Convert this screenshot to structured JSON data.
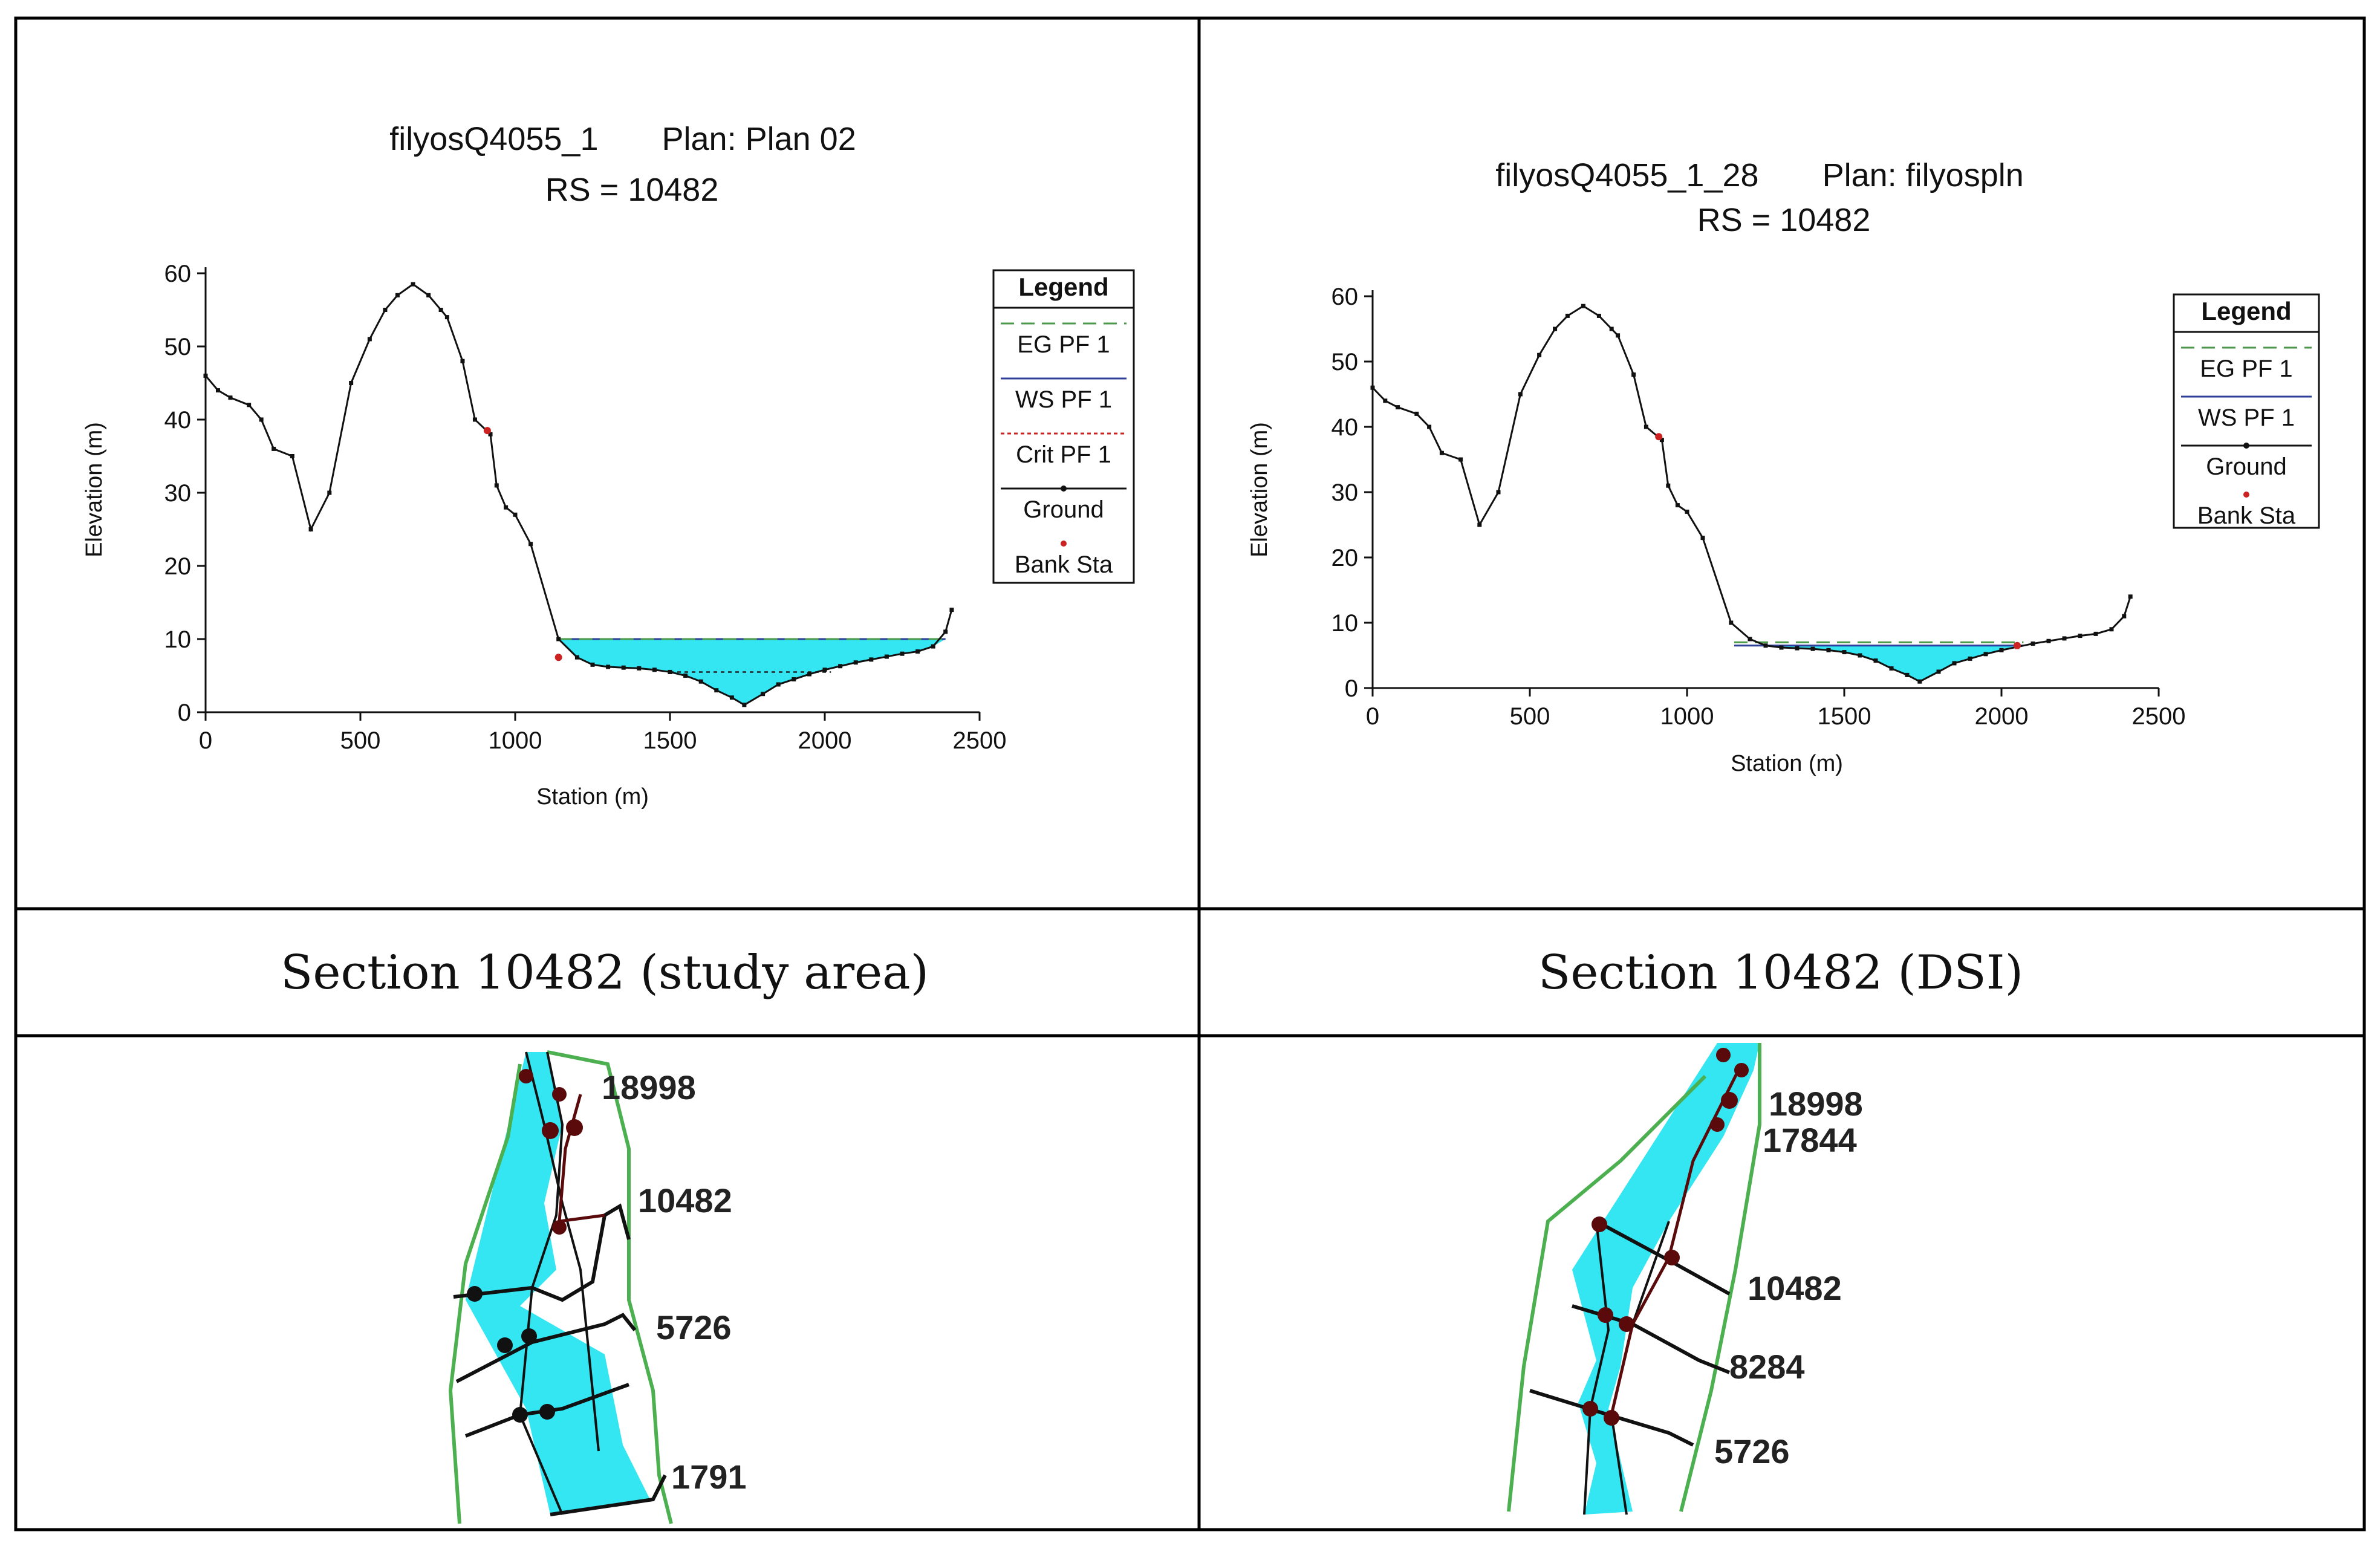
{
  "colors": {
    "water": "#33e6f2",
    "ground": "#111111",
    "eg_line": "#4a9a4a",
    "ws_line": "#2f3f9a",
    "crit_line": "#cc2222",
    "bank_sta": "#cc2222",
    "map_bank": "#4caf50",
    "map_node": "#5a0a0a"
  },
  "chart_data": [
    {
      "type": "line",
      "panel": "left",
      "title_line1": "filyosQ4055_1       Plan: Plan 02",
      "title_line2": "RS = 10482",
      "xlabel": "Station (m)",
      "ylabel": "Elevation (m)",
      "xlim": [
        0,
        2500
      ],
      "ylim": [
        0,
        60
      ],
      "xticks": [
        0,
        500,
        1000,
        1500,
        2000,
        2500
      ],
      "yticks": [
        0,
        10,
        20,
        30,
        40,
        50,
        60
      ],
      "legend_title": "Legend",
      "legend": [
        "EG PF 1",
        "WS PF 1",
        "Crit PF 1",
        "Ground",
        "Bank Sta"
      ],
      "ground": {
        "x": [
          0,
          40,
          80,
          140,
          180,
          220,
          280,
          340,
          400,
          470,
          530,
          580,
          620,
          670,
          720,
          760,
          780,
          830,
          870,
          920,
          940,
          970,
          1000,
          1050,
          1140,
          1200,
          1250,
          1300,
          1350,
          1400,
          1450,
          1500,
          1550,
          1600,
          1650,
          1700,
          1740,
          1800,
          1850,
          1900,
          1950,
          2000,
          2050,
          2100,
          2150,
          2200,
          2250,
          2300,
          2350,
          2390,
          2410
        ],
        "y": [
          46,
          44,
          43,
          42,
          40,
          36,
          35,
          25,
          30,
          45,
          51,
          55,
          57,
          58.5,
          57,
          55,
          54,
          48,
          40,
          38,
          31,
          28,
          27,
          23,
          10,
          7.5,
          6.5,
          6.2,
          6.1,
          6,
          5.8,
          5.5,
          5,
          4.2,
          3,
          2,
          1,
          2.5,
          3.8,
          4.5,
          5.2,
          5.8,
          6.3,
          6.8,
          7.2,
          7.6,
          8,
          8.3,
          9,
          11,
          14
        ]
      },
      "water_surface": {
        "elevation": 10,
        "x_from": 1140,
        "x_to": 2390
      },
      "crit_depth": {
        "elevation": 5.5,
        "x_from": 1500,
        "x_to": 2020
      },
      "bank_sta": [
        {
          "x": 910,
          "y": 38.5
        },
        {
          "x": 1140,
          "y": 7.5
        }
      ]
    },
    {
      "type": "line",
      "panel": "right",
      "title_line1": "filyosQ4055_1_28       Plan: filyospln",
      "title_line2": "RS = 10482",
      "xlabel": "Station (m)",
      "ylabel": "Elevation (m)",
      "xlim": [
        0,
        2500
      ],
      "ylim": [
        0,
        60
      ],
      "xticks": [
        0,
        500,
        1000,
        1500,
        2000,
        2500
      ],
      "yticks": [
        0,
        10,
        20,
        30,
        40,
        50,
        60
      ],
      "legend_title": "Legend",
      "legend": [
        "EG PF 1",
        "WS PF 1",
        "Ground",
        "Bank Sta"
      ],
      "ground": {
        "x": [
          0,
          40,
          80,
          140,
          180,
          220,
          280,
          340,
          400,
          470,
          530,
          580,
          620,
          670,
          720,
          760,
          780,
          830,
          870,
          920,
          940,
          970,
          1000,
          1050,
          1140,
          1200,
          1250,
          1300,
          1350,
          1400,
          1450,
          1500,
          1550,
          1600,
          1650,
          1700,
          1740,
          1800,
          1850,
          1900,
          1950,
          2000,
          2050,
          2100,
          2150,
          2200,
          2250,
          2300,
          2350,
          2390,
          2410
        ],
        "y": [
          46,
          44,
          43,
          42,
          40,
          36,
          35,
          25,
          30,
          45,
          51,
          55,
          57,
          58.5,
          57,
          55,
          54,
          48,
          40,
          38,
          31,
          28,
          27,
          23,
          10,
          7.5,
          6.5,
          6.2,
          6.1,
          6,
          5.8,
          5.5,
          5,
          4.2,
          3,
          2,
          1,
          2.5,
          3.8,
          4.5,
          5.2,
          5.8,
          6.3,
          6.8,
          7.2,
          7.6,
          8,
          8.3,
          9,
          11,
          14
        ]
      },
      "water_surface": {
        "elevation": 6.5,
        "x_from": 1150,
        "x_to": 2070
      },
      "energy_grade": {
        "elevation": 7,
        "x_from": 1150,
        "x_to": 2070
      },
      "bank_sta": [
        {
          "x": 910,
          "y": 38.5
        },
        {
          "x": 2050,
          "y": 6.5
        }
      ]
    }
  ],
  "captions": {
    "left": "Section 10482 (study area)",
    "right": "Section 10482 (DSI)"
  },
  "maps": {
    "left_labels": [
      "18998",
      "10482",
      "5726",
      "1791"
    ],
    "right_labels": [
      "18998",
      "17844",
      "10482",
      "8284",
      "5726"
    ]
  }
}
